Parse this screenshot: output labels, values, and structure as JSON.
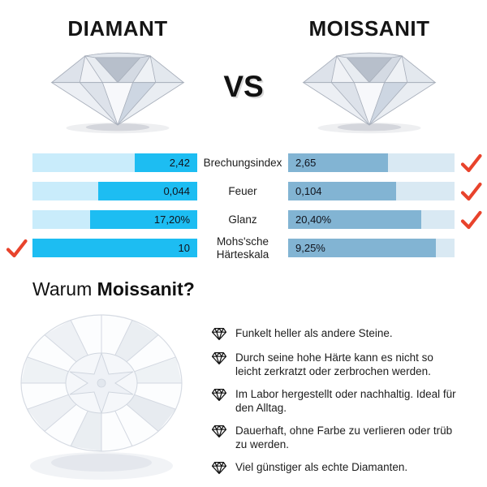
{
  "header": {
    "left_title": "DIAMANT",
    "vs_label": "VS",
    "right_title": "MOISSANIT"
  },
  "comparison": {
    "rows": [
      {
        "label": "Brechungsindex",
        "left_value": "2,42",
        "left_fill": 38,
        "right_value": "2,65",
        "right_fill": 60,
        "left_check": false,
        "right_check": true
      },
      {
        "label": "Feuer",
        "left_value": "0,044",
        "left_fill": 60,
        "right_value": "0,104",
        "right_fill": 65,
        "left_check": false,
        "right_check": true
      },
      {
        "label": "Glanz",
        "left_value": "17,20%",
        "left_fill": 65,
        "right_value": "20,40%",
        "right_fill": 80,
        "left_check": false,
        "right_check": true
      },
      {
        "label": "Mohs'sche Härteskala",
        "left_value": "10",
        "left_fill": 100,
        "right_value": "9,25%",
        "right_fill": 89,
        "left_check": true,
        "right_check": false
      }
    ],
    "colors": {
      "left_bar_bg": "#c9ecfb",
      "left_bar_fill": "#1dbdf2",
      "right_bar_bg": "#d9e9f3",
      "right_bar_fill": "#82b4d3",
      "check": "#e8432c"
    }
  },
  "why_section": {
    "prefix": "Warum ",
    "highlight": "Moissanit?"
  },
  "benefits": [
    {
      "icon": "gem-icon",
      "text": "Funkelt heller als andere Steine."
    },
    {
      "icon": "gem-icon",
      "text": "Durch seine hohe Härte kann es nicht so leicht zerkratzt oder zerbrochen werden."
    },
    {
      "icon": "gem-icon",
      "text": "Im Labor hergestellt oder nachhaltig. Ideal für den Alltag."
    },
    {
      "icon": "gem-icon",
      "text": "Dauerhaft, ohne Farbe zu verlieren oder trüb zu werden."
    },
    {
      "icon": "gem-icon",
      "text": "Viel günstiger als echte Diamanten."
    }
  ],
  "chart_data": {
    "type": "bar",
    "title": "DIAMANT vs MOISSANIT",
    "categories": [
      "Brechungsindex",
      "Feuer",
      "Glanz",
      "Mohs'sche Härteskala"
    ],
    "series": [
      {
        "name": "DIAMANT",
        "values": [
          2.42,
          0.044,
          17.2,
          10
        ],
        "labels": [
          "2,42",
          "0,044",
          "17,20%",
          "10"
        ]
      },
      {
        "name": "MOISSANIT",
        "values": [
          2.65,
          0.104,
          20.4,
          9.25
        ],
        "labels": [
          "2,65",
          "0,104",
          "20,40%",
          "9,25%"
        ]
      }
    ],
    "winners": [
      "MOISSANIT",
      "MOISSANIT",
      "MOISSANIT",
      "DIAMANT"
    ],
    "legend_position": "none",
    "grid": false
  }
}
